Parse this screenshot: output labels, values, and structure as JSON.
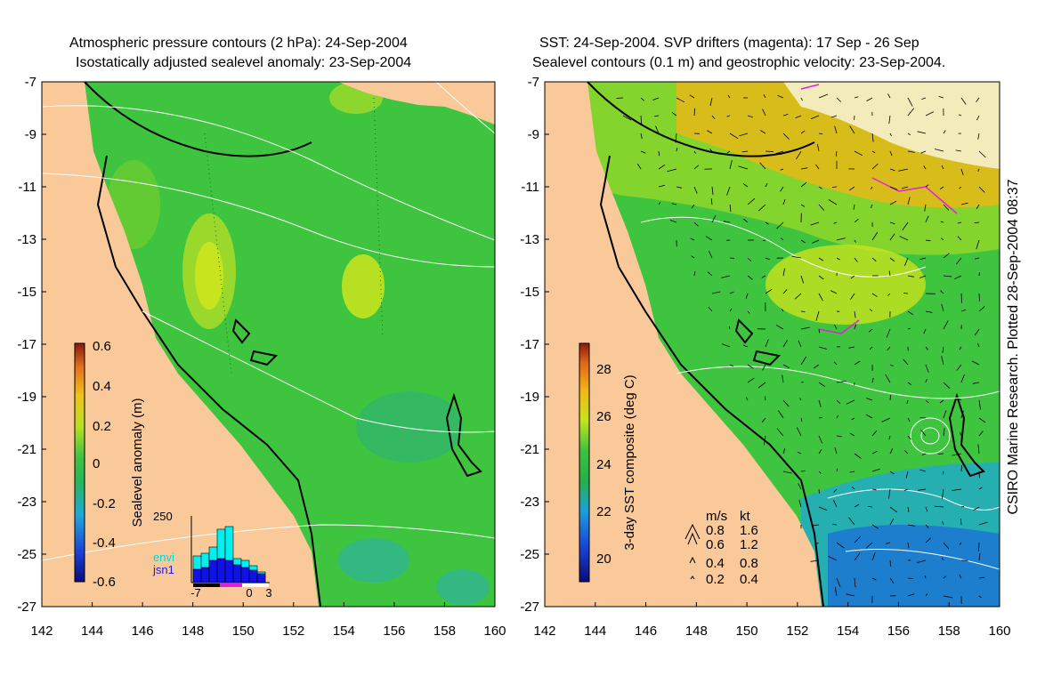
{
  "left_panel": {
    "title_line1": "Atmospheric pressure contours (2 hPa): 24-Sep-2004",
    "title_line2": "Isostatically adjusted sealevel anomaly: 23-Sep-2004",
    "colorbar": {
      "label": "Sealevel anomaly (m)",
      "ticks": [
        "0.6",
        "0.4",
        "0.2",
        "0",
        "-0.2",
        "-0.4",
        "-0.6"
      ]
    },
    "histogram": {
      "ymax_label": "250",
      "legend": [
        "envi",
        "jsn1"
      ],
      "x_ticks": [
        "-7",
        "0",
        "3"
      ]
    }
  },
  "right_panel": {
    "title_line1": "SST: 24-Sep-2004. SVP drifters (magenta): 17 Sep - 26 Sep",
    "title_line2": "Sealevel contours (0.1 m) and geostrophic velocity: 23-Sep-2004.",
    "colorbar": {
      "label": "3-day SST composite (deg C)",
      "ticks": [
        "28",
        "26",
        "24",
        "22",
        "20"
      ]
    },
    "velocity_legend": {
      "header_ms": "m/s",
      "header_kt": "kt",
      "rows": [
        {
          "ms": "0.8",
          "kt": "1.6"
        },
        {
          "ms": "0.6",
          "kt": "1.2"
        },
        {
          "ms": "0.4",
          "kt": "0.8"
        },
        {
          "ms": "0.2",
          "kt": "0.4"
        }
      ]
    },
    "credit": "CSIRO Marine Research. Plotted 28-Sep-2004 08:37"
  },
  "axes": {
    "y_ticks": [
      "-7",
      "-9",
      "-11",
      "-13",
      "-15",
      "-17",
      "-19",
      "-21",
      "-23",
      "-25",
      "-27"
    ],
    "x_ticks": [
      "142",
      "144",
      "146",
      "148",
      "150",
      "152",
      "154",
      "156",
      "158",
      "160"
    ]
  },
  "colors": {
    "land": "#F9C99A",
    "ocean_base": "#3FC43F",
    "contour": "#FFFFFF",
    "drifter": "#E020E0"
  }
}
